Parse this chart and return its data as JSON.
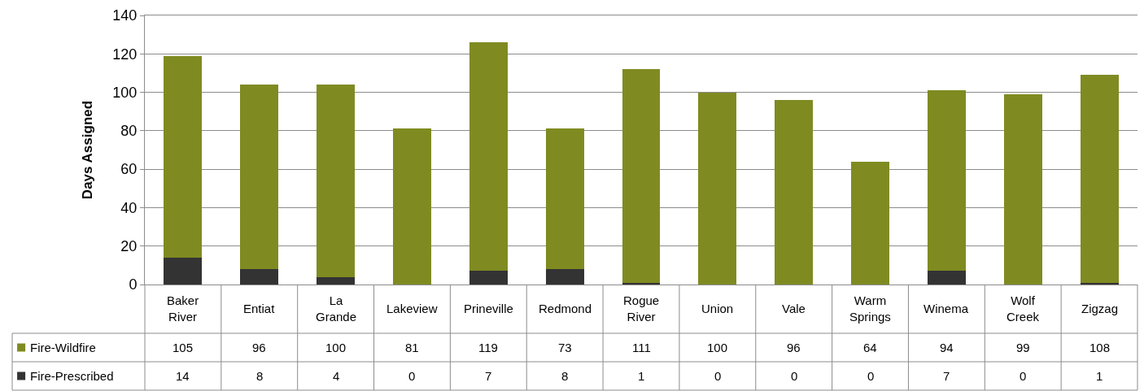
{
  "chart_data": {
    "type": "bar",
    "stacked": true,
    "ylabel": "Days Assigned",
    "categories": [
      "Baker River",
      "Entiat",
      "La Grande",
      "Lakeview",
      "Prineville",
      "Redmond",
      "Rogue River",
      "Union",
      "Vale",
      "Warm Springs",
      "Winema",
      "Wolf Creek",
      "Zigzag"
    ],
    "series": [
      {
        "name": "Fire-Prescribed",
        "color": "#333333",
        "values": [
          14,
          8,
          4,
          0,
          7,
          8,
          1,
          0,
          0,
          0,
          7,
          0,
          1
        ]
      },
      {
        "name": "Fire-Wildfire",
        "color": "#7f8b21",
        "values": [
          105,
          96,
          100,
          81,
          119,
          73,
          111,
          100,
          96,
          64,
          94,
          99,
          108
        ]
      }
    ],
    "ylim": [
      0,
      140
    ],
    "yticks": [
      0,
      20,
      40,
      60,
      80,
      100,
      120,
      140
    ],
    "grid": "y",
    "legend": "bottom left",
    "data_labels": true
  }
}
